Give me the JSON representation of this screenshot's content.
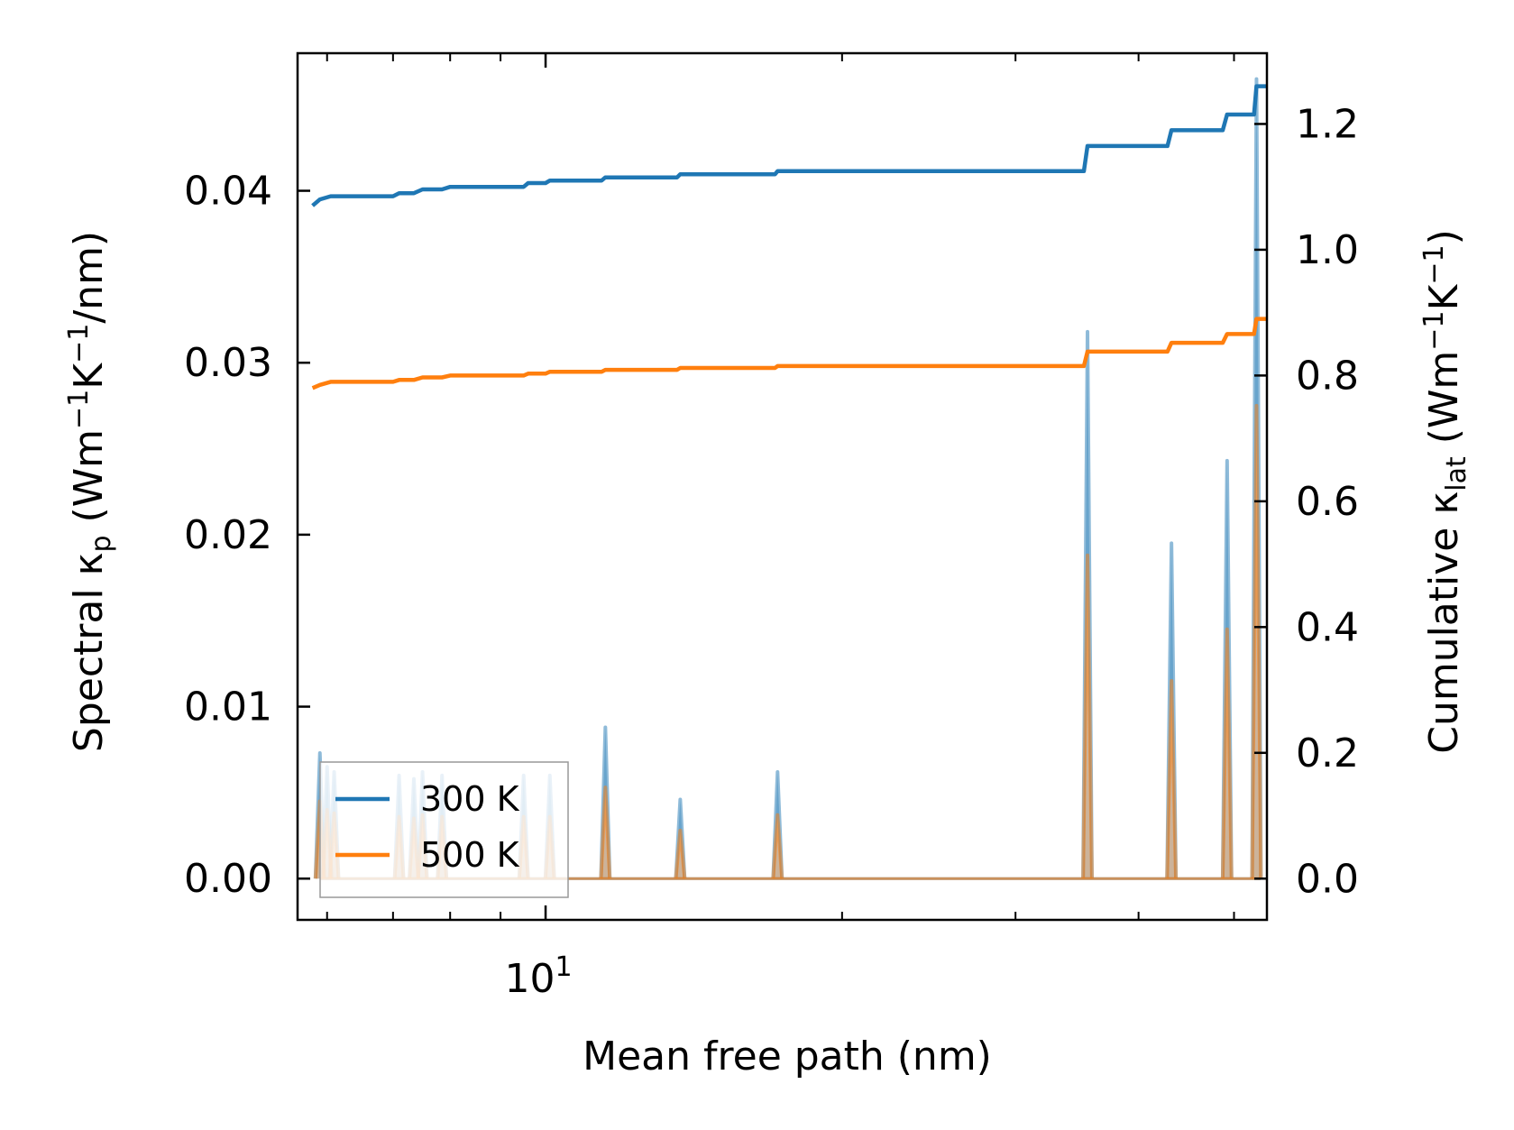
{
  "chart_data": {
    "type": "line",
    "xlabel": "Mean free path (nm)",
    "ylabel_left": {
      "main": "Spectral κ",
      "sub": "p",
      "unit_pre": " (Wm",
      "sup1": "−1",
      "mid": "K",
      "sup2": "−1",
      "unit_post": "/nm)"
    },
    "ylabel_right": {
      "main": "Cumulative κ",
      "sub": "lat",
      "unit_pre": " (Wm",
      "sup1": "−1",
      "mid": "K",
      "sup2": "−1",
      "unit_post": ")"
    },
    "xscale": "log",
    "xlim": [
      5.6,
      54
    ],
    "ylim_left": [
      -0.0024,
      0.048
    ],
    "ylim_right": [
      -0.0656,
      1.3125
    ],
    "x_tick_labels": [
      {
        "value": 10,
        "base": "10",
        "exp": "1"
      }
    ],
    "x_minor_ticks": [
      6,
      7,
      8,
      9,
      20,
      30,
      40,
      50
    ],
    "y_left_ticks": [
      0.0,
      0.01,
      0.02,
      0.03,
      0.04
    ],
    "y_left_tick_labels": [
      "0.00",
      "0.01",
      "0.02",
      "0.03",
      "0.04"
    ],
    "y_right_ticks": [
      0.0,
      0.2,
      0.4,
      0.6,
      0.8,
      1.0,
      1.2
    ],
    "y_right_tick_labels": [
      "0.0",
      "0.2",
      "0.4",
      "0.6",
      "0.8",
      "1.0",
      "1.2"
    ],
    "legend": {
      "position": "lower-left",
      "entries": [
        "300 K",
        "500 K"
      ]
    },
    "colors": {
      "300 K": "#1f77b4",
      "500 K": "#ff7f0e"
    },
    "peak_width_log": 0.0045,
    "spectral_peaks": {
      "300 K": [
        {
          "x": 5.9,
          "y": 0.0073
        },
        {
          "x": 6.0,
          "y": 0.0065
        },
        {
          "x": 6.1,
          "y": 0.0062
        },
        {
          "x": 7.1,
          "y": 0.006
        },
        {
          "x": 7.35,
          "y": 0.0058
        },
        {
          "x": 7.5,
          "y": 0.0062
        },
        {
          "x": 7.85,
          "y": 0.006
        },
        {
          "x": 9.5,
          "y": 0.006
        },
        {
          "x": 10.1,
          "y": 0.006
        },
        {
          "x": 11.5,
          "y": 0.0088
        },
        {
          "x": 13.7,
          "y": 0.0046
        },
        {
          "x": 17.2,
          "y": 0.0062
        },
        {
          "x": 35.5,
          "y": 0.0318
        },
        {
          "x": 43.2,
          "y": 0.0195
        },
        {
          "x": 49.2,
          "y": 0.0243
        },
        {
          "x": 52.7,
          "y": 0.0465
        }
      ],
      "500 K": [
        {
          "x": 5.9,
          "y": 0.0045
        },
        {
          "x": 6.0,
          "y": 0.004
        },
        {
          "x": 6.1,
          "y": 0.0038
        },
        {
          "x": 7.1,
          "y": 0.0036
        },
        {
          "x": 7.35,
          "y": 0.0035
        },
        {
          "x": 7.5,
          "y": 0.0037
        },
        {
          "x": 7.85,
          "y": 0.0036
        },
        {
          "x": 9.5,
          "y": 0.0036
        },
        {
          "x": 10.1,
          "y": 0.0036
        },
        {
          "x": 11.5,
          "y": 0.0053
        },
        {
          "x": 13.7,
          "y": 0.0028
        },
        {
          "x": 17.2,
          "y": 0.0037
        },
        {
          "x": 35.5,
          "y": 0.0188
        },
        {
          "x": 43.2,
          "y": 0.0115
        },
        {
          "x": 49.2,
          "y": 0.0145
        },
        {
          "x": 52.7,
          "y": 0.0275
        }
      ]
    },
    "cumulative": {
      "300 K": [
        [
          5.8,
          1.07
        ],
        [
          5.9,
          1.08
        ],
        [
          6.05,
          1.085
        ],
        [
          6.3,
          1.085
        ],
        [
          7.0,
          1.085
        ],
        [
          7.1,
          1.09
        ],
        [
          7.35,
          1.09
        ],
        [
          7.5,
          1.096
        ],
        [
          7.85,
          1.096
        ],
        [
          8.0,
          1.1
        ],
        [
          9.5,
          1.1
        ],
        [
          9.6,
          1.106
        ],
        [
          10.0,
          1.106
        ],
        [
          10.1,
          1.11
        ],
        [
          11.4,
          1.11
        ],
        [
          11.5,
          1.115
        ],
        [
          13.6,
          1.115
        ],
        [
          13.7,
          1.12
        ],
        [
          17.1,
          1.12
        ],
        [
          17.2,
          1.125
        ],
        [
          35.2,
          1.125
        ],
        [
          35.5,
          1.165
        ],
        [
          42.8,
          1.165
        ],
        [
          43.2,
          1.19
        ],
        [
          48.7,
          1.19
        ],
        [
          49.2,
          1.215
        ],
        [
          52.4,
          1.215
        ],
        [
          52.7,
          1.26
        ],
        [
          54.0,
          1.26
        ]
      ],
      "500 K": [
        [
          5.8,
          0.78
        ],
        [
          5.9,
          0.785
        ],
        [
          6.05,
          0.79
        ],
        [
          6.3,
          0.79
        ],
        [
          7.0,
          0.79
        ],
        [
          7.1,
          0.793
        ],
        [
          7.35,
          0.793
        ],
        [
          7.5,
          0.797
        ],
        [
          7.85,
          0.797
        ],
        [
          8.0,
          0.8
        ],
        [
          9.5,
          0.8
        ],
        [
          9.6,
          0.803
        ],
        [
          10.0,
          0.803
        ],
        [
          10.1,
          0.806
        ],
        [
          11.4,
          0.806
        ],
        [
          11.5,
          0.809
        ],
        [
          13.6,
          0.809
        ],
        [
          13.7,
          0.812
        ],
        [
          17.1,
          0.812
        ],
        [
          17.2,
          0.815
        ],
        [
          35.2,
          0.815
        ],
        [
          35.5,
          0.838
        ],
        [
          42.8,
          0.838
        ],
        [
          43.2,
          0.852
        ],
        [
          48.7,
          0.852
        ],
        [
          49.2,
          0.866
        ],
        [
          52.4,
          0.866
        ],
        [
          52.7,
          0.89
        ],
        [
          54.0,
          0.89
        ]
      ]
    }
  }
}
